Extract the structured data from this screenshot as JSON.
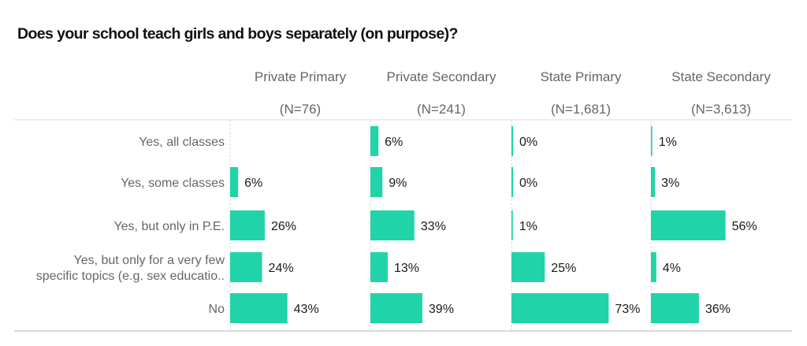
{
  "title": "Does your school teach girls and boys separately (on purpose)?",
  "colors": {
    "bar": "#20D3A8",
    "grid": "#d9d9d9",
    "text_label": "#666666",
    "text_value": "#1a1a1a"
  },
  "chart_data": {
    "type": "bar",
    "orientation": "horizontal",
    "layout": "small-multiples",
    "title": "Does your school teach girls and boys separately (on purpose)?",
    "categories": [
      "Yes, all classes",
      "Yes, some classes",
      "Yes, but only in P.E.",
      "Yes, but only for a very few specific topics (e.g. sex educatio..",
      "No"
    ],
    "category_lines": [
      [
        "Yes, all classes"
      ],
      [
        "Yes, some classes"
      ],
      [
        "Yes, but only in P.E."
      ],
      [
        "Yes, but only for a very few",
        "specific topics (e.g. sex educatio.."
      ],
      [
        "No"
      ]
    ],
    "series": [
      {
        "name": "Private Primary",
        "n_label": "(N=76)",
        "values": [
          0,
          6,
          26,
          24,
          43
        ],
        "labels": [
          "",
          "6%",
          "26%",
          "24%",
          "43%"
        ]
      },
      {
        "name": "Private Secondary",
        "n_label": "(N=241)",
        "values": [
          6,
          9,
          33,
          13,
          39
        ],
        "labels": [
          "6%",
          "9%",
          "33%",
          "13%",
          "39%"
        ]
      },
      {
        "name": "State Primary",
        "n_label": "(N=1,681)",
        "values": [
          0,
          0,
          1,
          25,
          73
        ],
        "labels": [
          "0%",
          "0%",
          "1%",
          "25%",
          "73%"
        ]
      },
      {
        "name": "State Secondary",
        "n_label": "(N=3,613)",
        "values": [
          1,
          3,
          56,
          4,
          36
        ],
        "labels": [
          "1%",
          "3%",
          "56%",
          "4%",
          "36%"
        ]
      }
    ],
    "value_unit": "%",
    "xlim": [
      0,
      100
    ],
    "grid": false,
    "legend": "none"
  }
}
